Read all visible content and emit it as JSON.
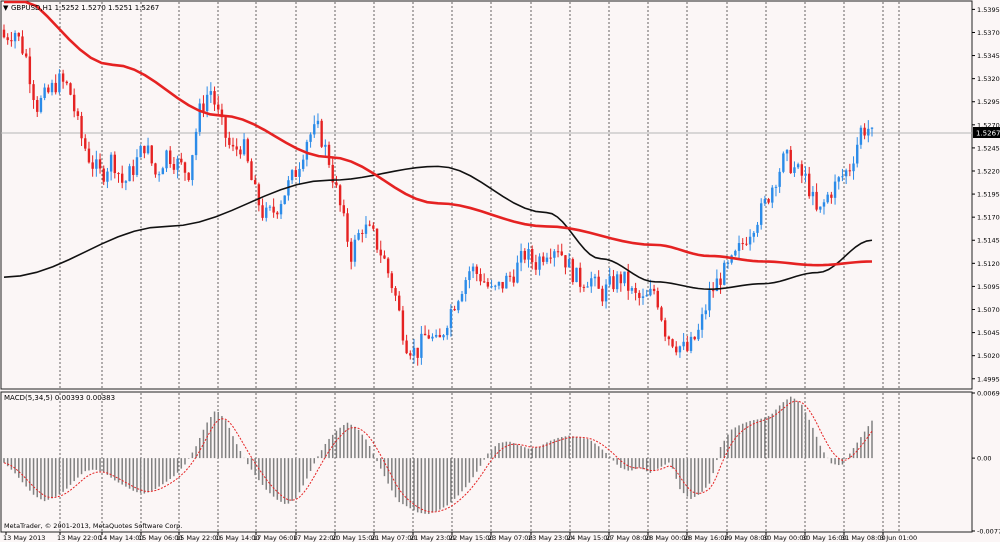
{
  "window": {
    "symbol_header": "GBPUSD,H1 1.5252 1.5270 1.5251 1.5267",
    "copyright": "MetaTrader, © 2001-2013, MetaQuotes Software Corp."
  },
  "colors": {
    "background": "#fbf6f6",
    "bull_candle": "#2b8be8",
    "bear_candle": "#e52222",
    "ma_fast": "#111111",
    "ma_slow": "#e52222",
    "macd_hist": "#808080",
    "macd_signal": "#e52222",
    "grid": "#000000"
  },
  "chart_data": [
    {
      "type": "candlestick",
      "title": "GBPUSD,H1 1.5252 1.5270 1.5251 1.5267",
      "y_ticks": [
        "1.5395",
        "1.5370",
        "1.5345",
        "1.5320",
        "1.5295",
        "1.5270",
        "1.5245",
        "1.5220",
        "1.5195",
        "1.5170",
        "1.5145",
        "1.5120",
        "1.5095",
        "1.5070",
        "1.5045",
        "1.5020",
        "1.4995"
      ],
      "ylim": [
        1.4985,
        1.5403
      ],
      "current_price": "1.5267",
      "x_ticks": [
        "13 May 2013",
        "13 May 22:00",
        "14 May 14:00",
        "15 May 06:00",
        "15 May 22:00",
        "16 May 14:00",
        "17 May 06:00",
        "17 May 22:00",
        "20 May 15:00",
        "21 May 07:00",
        "21 May 23:00",
        "22 May 15:00",
        "23 May 07:00",
        "23 May 23:00",
        "24 May 15:00",
        "27 May 08:00",
        "28 May 00:00",
        "28 May 16:00",
        "29 May 08:00",
        "30 May 00:00",
        "30 May 16:00",
        "31 May 08:00",
        "3 Jun 01:00"
      ],
      "grid": "vertical-dotted",
      "close_path": [
        1.5365,
        1.5372,
        1.5345,
        1.529,
        1.5303,
        1.5318,
        1.531,
        1.526,
        1.523,
        1.5215,
        1.5235,
        1.5205,
        1.5225,
        1.525,
        1.5215,
        1.524,
        1.5228,
        1.5218,
        1.5283,
        1.531,
        1.527,
        1.524,
        1.525,
        1.52,
        1.517,
        1.5178,
        1.52,
        1.5222,
        1.5258,
        1.5265,
        1.523,
        1.518,
        1.513,
        1.516,
        1.515,
        1.5125,
        1.5088,
        1.5035,
        1.5022,
        1.5045,
        1.503,
        1.5065,
        1.509,
        1.5115,
        1.5105,
        1.5088,
        1.5098,
        1.511,
        1.513,
        1.512,
        1.5135,
        1.514,
        1.5118,
        1.51,
        1.5105,
        1.5085,
        1.5098,
        1.5105,
        1.5085,
        1.5078,
        1.5092,
        1.5045,
        1.5032,
        1.5025,
        1.5045,
        1.5085,
        1.5105,
        1.5118,
        1.514,
        1.5162,
        1.518,
        1.521,
        1.5235,
        1.522,
        1.521,
        1.517,
        1.5195,
        1.521,
        1.5225,
        1.5265,
        1.5267
      ],
      "series": [
        {
          "name": "",
          "values": [
            [
              0,
              1.5105
            ],
            [
              15,
              1.516
            ],
            [
              30,
              1.521
            ],
            [
              40,
              1.5225
            ],
            [
              50,
              1.5175
            ],
            [
              55,
              1.5125
            ],
            [
              60,
              1.51
            ],
            [
              65,
              1.5092
            ],
            [
              70,
              1.5098
            ],
            [
              75,
              1.511
            ],
            [
              80,
              1.5145
            ]
          ]
        },
        {
          "name": "",
          "values": [
            [
              0,
              1.5415
            ],
            [
              10,
              1.5335
            ],
            [
              20,
              1.528
            ],
            [
              30,
              1.5235
            ],
            [
              40,
              1.5185
            ],
            [
              50,
              1.516
            ],
            [
              60,
              1.514
            ],
            [
              65,
              1.5128
            ],
            [
              70,
              1.5122
            ],
            [
              75,
              1.5118
            ],
            [
              80,
              1.5122
            ]
          ]
        }
      ]
    },
    {
      "type": "bar",
      "title": "MACD(5,34,5) 0.00393 0.00383",
      "y_ticks": [
        "0.00695",
        "0.00",
        "-0.00778"
      ],
      "ylim": [
        -0.00778,
        0.00695
      ],
      "histogram": [
        -0.0005,
        -0.0015,
        -0.0028,
        -0.004,
        -0.0046,
        -0.0042,
        -0.0035,
        -0.0024,
        -0.0014,
        -0.0012,
        -0.0016,
        -0.0024,
        -0.003,
        -0.0036,
        -0.0038,
        -0.0033,
        -0.0026,
        -0.0018,
        -0.0006,
        0.0012,
        0.0036,
        0.0052,
        0.004,
        0.0016,
        -0.0004,
        -0.002,
        -0.0034,
        -0.0044,
        -0.005,
        -0.0042,
        -0.0022,
        0.0,
        0.0018,
        0.003,
        0.0038,
        0.0032,
        0.0018,
        -0.0004,
        -0.0026,
        -0.0046,
        -0.0052,
        -0.0058,
        -0.006,
        -0.0056,
        -0.005,
        -0.004,
        -0.0028,
        -0.0012,
        0.0006,
        0.0016,
        0.0018,
        0.0014,
        0.001,
        0.0012,
        0.0018,
        0.0022,
        0.0024,
        0.0022,
        0.002,
        0.0012,
        0.0002,
        -0.001,
        -0.0014,
        -0.001,
        -0.0016,
        -0.001,
        -0.0004,
        -0.0034,
        -0.0044,
        -0.0038,
        -0.0026,
        0.0012,
        0.003,
        0.0036,
        0.004,
        0.0042,
        0.0046,
        0.0058,
        0.0066,
        0.0058,
        0.0036,
        0.001,
        -0.0006,
        -0.0008,
        0.0008,
        0.0024,
        0.004
      ]
    }
  ]
}
